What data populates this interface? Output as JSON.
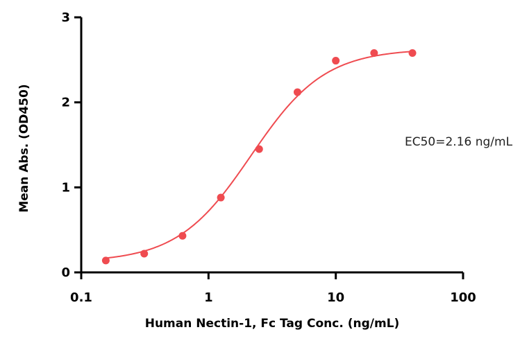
{
  "chart_data": {
    "type": "scatter",
    "title": "",
    "xlabel": "Human Nectin-1, Fc Tag Conc. (ng/mL)",
    "ylabel": "Mean Abs. (OD450)",
    "xscale": "log",
    "xlim": [
      0.1,
      100
    ],
    "ylim": [
      0,
      3
    ],
    "xticks": [
      0.1,
      1,
      10,
      100
    ],
    "xtick_labels": [
      "0.1",
      "1",
      "10",
      "100"
    ],
    "yticks": [
      0,
      1,
      2,
      3
    ],
    "ytick_labels": [
      "0",
      "1",
      "2",
      "3"
    ],
    "grid": false,
    "color": "#ef4b50",
    "points": {
      "x": [
        0.156,
        0.3125,
        0.625,
        1.25,
        2.5,
        5,
        10,
        20,
        40
      ],
      "y": [
        0.14,
        0.22,
        0.43,
        0.88,
        1.45,
        2.12,
        2.49,
        2.58,
        2.58
      ]
    },
    "fit": {
      "model": "4PL",
      "bottom": 0.12,
      "top": 2.63,
      "ec50": 2.16,
      "hill": 1.5
    },
    "annotation": "EC50=2.16 ng/mL"
  }
}
